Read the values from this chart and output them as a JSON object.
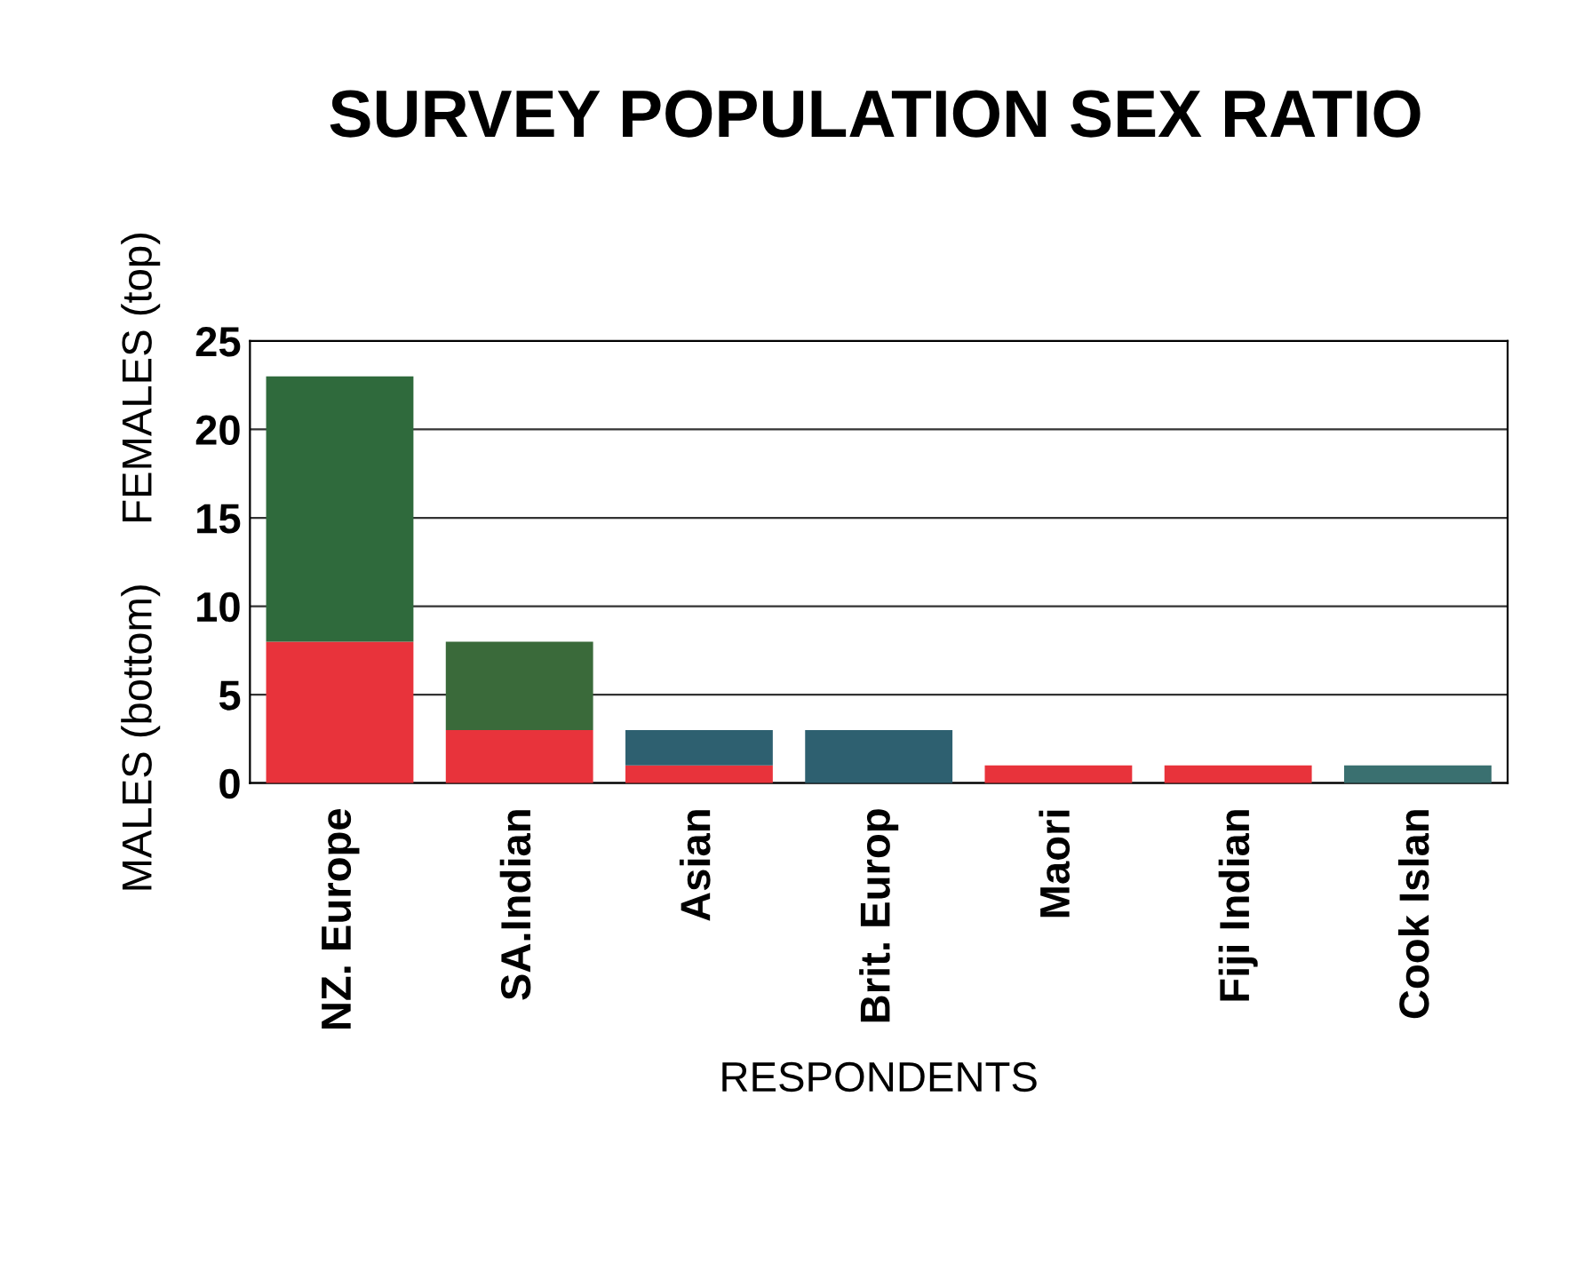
{
  "chart_data": {
    "type": "bar",
    "title": "SURVEY POPULATION SEX RATIO",
    "xlabel": "RESPONDENTS",
    "ylabel": "MALES (bottom)     FEMALES (top)",
    "categories": [
      "NZ. Europe",
      "SA.Indian",
      "Asian",
      "Brit. Europ",
      "Maori",
      "Fiji Indian",
      "Cook Islan"
    ],
    "stacked": true,
    "series": [
      {
        "color": "#e8333b",
        "values": [
          8,
          3,
          1,
          0,
          1,
          1,
          0
        ]
      },
      {
        "colors": [
          "#2f6a3c",
          "#3a6a3a",
          "#2e6070",
          "#2e6070",
          "#2e6070",
          "#2e6070",
          "#3a7070"
        ],
        "values": [
          15,
          5,
          2,
          3,
          0,
          0,
          1
        ]
      }
    ],
    "ylim": [
      0,
      25
    ],
    "yticks": [
      0,
      5,
      10,
      15,
      20,
      25
    ],
    "grid": "y",
    "legend": false
  }
}
